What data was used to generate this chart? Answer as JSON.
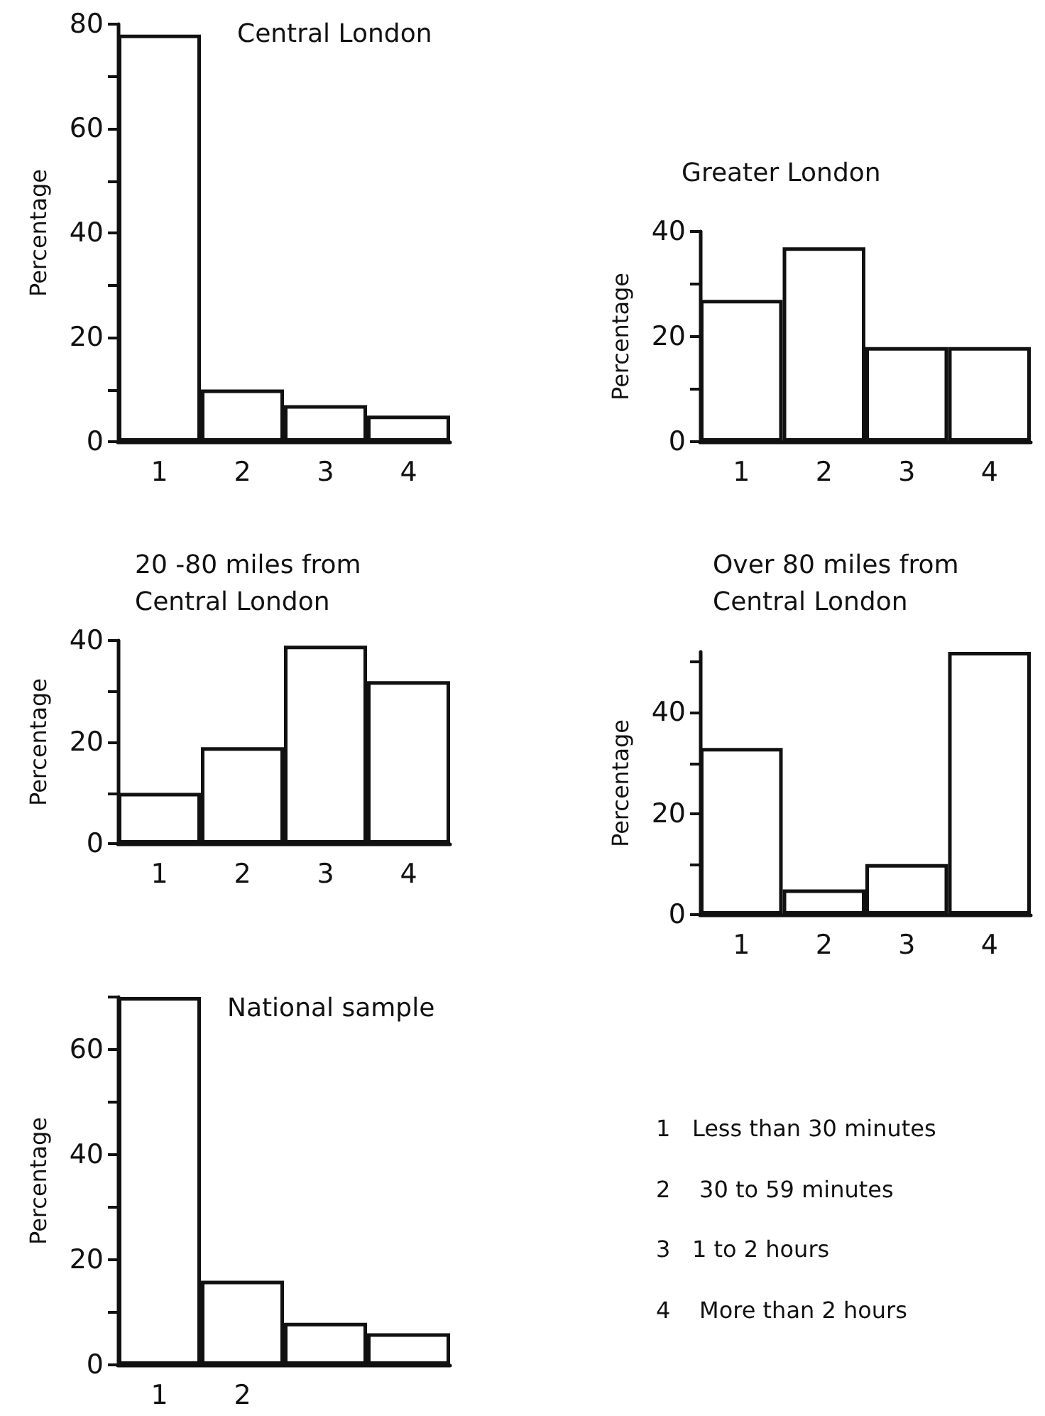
{
  "chart_data": [
    {
      "type": "bar",
      "title": "Central London",
      "ylabel": "Percentage",
      "categories": [
        "1",
        "2",
        "3",
        "4"
      ],
      "values": [
        78,
        10,
        7,
        5
      ],
      "color": "#ffffff",
      "ylim": [
        0,
        80
      ],
      "yticks": [
        0,
        {
          "value": 10,
          "label": null
        },
        20,
        {
          "value": 30,
          "label": null
        },
        40,
        {
          "value": 50,
          "label": null
        },
        60,
        {
          "value": 70,
          "label": null
        },
        80
      ],
      "grid": false
    },
    {
      "type": "bar",
      "title": "Greater London",
      "ylabel": "Percentage",
      "categories": [
        "1",
        "2",
        "3",
        "4"
      ],
      "values": [
        27,
        37,
        18,
        18
      ],
      "color": "#ffffff",
      "ylim": [
        0,
        40
      ],
      "yticks": [
        0,
        {
          "value": 10,
          "label": null
        },
        20,
        {
          "value": 30,
          "label": null
        },
        40
      ],
      "grid": false
    },
    {
      "type": "bar",
      "title": "20 -80 miles from Central London",
      "ylabel": "Percentage",
      "categories": [
        "1",
        "2",
        "3",
        "4"
      ],
      "values": [
        10,
        19,
        39,
        32
      ],
      "color": "#ffffff",
      "ylim": [
        0,
        40
      ],
      "yticks": [
        0,
        {
          "value": 10,
          "label": null
        },
        20,
        {
          "value": 30,
          "label": null
        },
        40
      ],
      "grid": false
    },
    {
      "type": "bar",
      "title": "Over 80 miles from Central London",
      "ylabel": "Percentage",
      "categories": [
        "1",
        "2",
        "3",
        "4"
      ],
      "values": [
        33,
        5,
        10,
        52
      ],
      "color": "#ffffff",
      "ylim": [
        0,
        52
      ],
      "yticks": [
        0,
        {
          "value": 10,
          "label": null
        },
        20,
        {
          "value": 30,
          "label": null
        },
        40,
        {
          "value": 50,
          "label": null
        }
      ],
      "grid": false
    },
    {
      "type": "bar",
      "title": "National sample",
      "ylabel": "Percentage",
      "categories": [
        "1",
        "2",
        null,
        null
      ],
      "values": [
        70,
        16,
        8,
        6
      ],
      "color": "#ffffff",
      "ylim": [
        0,
        70
      ],
      "yticks": [
        0,
        {
          "value": 10,
          "label": null
        },
        20,
        {
          "value": 30,
          "label": null
        },
        40,
        {
          "value": 50,
          "label": null
        },
        60,
        {
          "value": 70,
          "label": null
        }
      ],
      "grid": false
    },
    {
      "type": "other",
      "annotations": [
        "1   Less than 30 minutes",
        "2    30 to 59 minutes",
        "3   1 to 2 hours",
        "4    More than 2 hours"
      ]
    }
  ]
}
